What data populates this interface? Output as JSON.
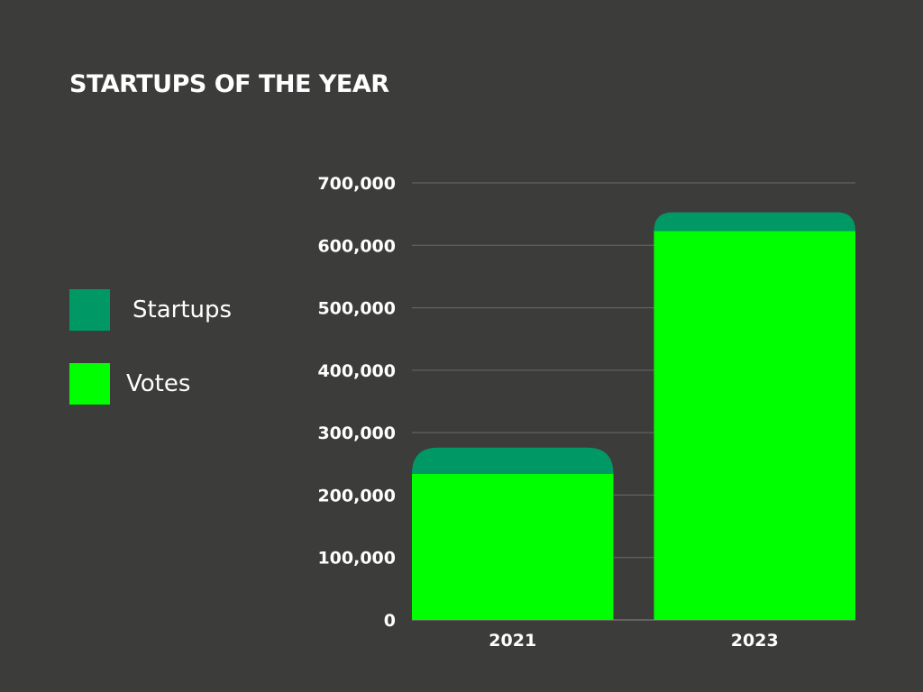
{
  "chart_data": {
    "type": "bar",
    "stacked": true,
    "title": "STARTUPS OF THE YEAR",
    "categories": [
      "2021",
      "2023"
    ],
    "series": [
      {
        "name": "Votes",
        "color": "#00ff00",
        "values": [
          234000,
          623000
        ]
      },
      {
        "name": "Startups",
        "color": "#009966",
        "values": [
          42000,
          30000
        ]
      }
    ],
    "ylim": [
      0,
      700000
    ],
    "yticks": [
      0,
      100000,
      200000,
      300000,
      400000,
      500000,
      600000,
      700000
    ],
    "ytick_labels": [
      "0",
      "100,000",
      "200,000",
      "300,000",
      "400,000",
      "500,000",
      "600,000",
      "700,000"
    ],
    "grid": true,
    "legend_position": "left"
  },
  "legend": [
    {
      "label": "Startups",
      "color": "#009966"
    },
    {
      "label": "Votes",
      "color": "#00ff00"
    }
  ]
}
